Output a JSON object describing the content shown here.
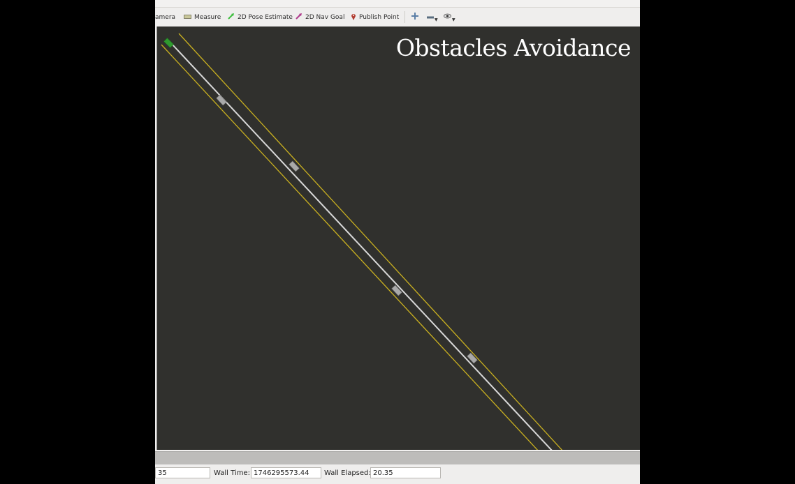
{
  "toolbar": {
    "camera_label": "amera",
    "measure_label": "Measure",
    "pose_label": "2D Pose Estimate",
    "nav_label": "2D Nav Goal",
    "publish_label": "Publish Point",
    "icons": [
      "camera-icon",
      "ruler-icon",
      "pose-arrow-icon",
      "nav-arrow-icon",
      "map-pin-icon",
      "move-cross-icon",
      "minus-icon",
      "eye-icon"
    ],
    "colors": {
      "pose": "#3fbf3f",
      "nav": "#b03a8c",
      "pin": "#b03a2e"
    }
  },
  "viewport": {
    "title": "Obstacles Avoidance",
    "background": "#30302d",
    "lane_color": "#c9b020",
    "path_color": "#d9d9d9",
    "vehicle_color": "#2f9a2f",
    "obstacle_color": "#a9a9a9"
  },
  "status": {
    "ros_elapsed_value": "35",
    "wall_time_label": "Wall Time:",
    "wall_time_value": "1746295573.44",
    "wall_elapsed_label": "Wall Elapsed:",
    "wall_elapsed_value": "20.35"
  }
}
